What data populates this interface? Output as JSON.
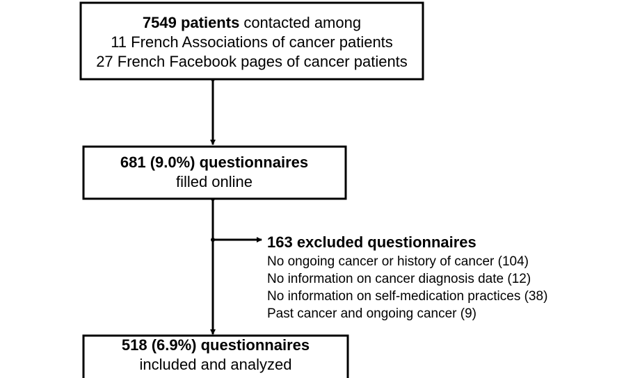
{
  "boxes": [
    {
      "heading_bold": "7549 patients",
      "heading_rest": "contacted among",
      "lines": [
        "11 French Associations of cancer patients",
        "27 French Facebook pages of cancer patients"
      ]
    },
    {
      "heading_bold": "681 (9.0%) questionnaires",
      "lines": [
        "filled online"
      ]
    },
    {
      "heading_bold": "518 (6.9%) questionnaires",
      "lines": [
        "included and analyzed"
      ]
    }
  ],
  "exclusion": {
    "heading": "163 excluded questionnaires",
    "lines": [
      "No ongoing cancer or history of cancer (104)",
      "No information on cancer diagnosis date (12)",
      "No information on self-medication practices (38)",
      "Past cancer and ongoing cancer (9)"
    ]
  }
}
